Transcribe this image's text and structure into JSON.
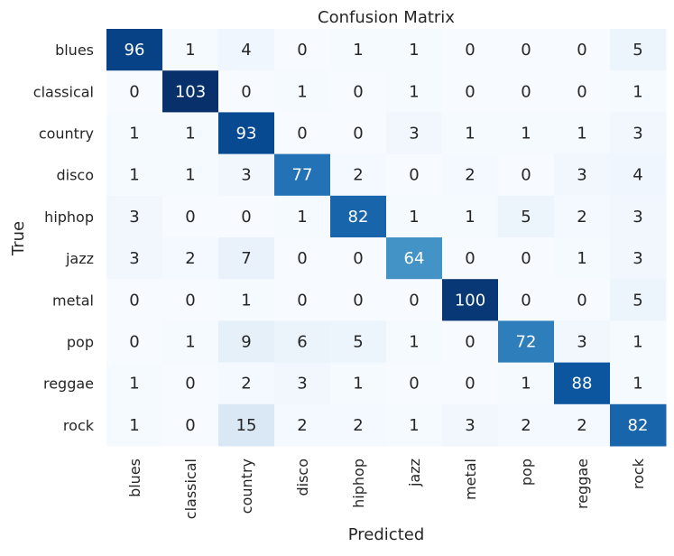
{
  "chart_data": {
    "type": "heatmap",
    "title": "Confusion Matrix",
    "xlabel": "Predicted",
    "ylabel": "True",
    "x_categories": [
      "blues",
      "classical",
      "country",
      "disco",
      "hiphop",
      "jazz",
      "metal",
      "pop",
      "reggae",
      "rock"
    ],
    "y_categories": [
      "blues",
      "classical",
      "country",
      "disco",
      "hiphop",
      "jazz",
      "metal",
      "pop",
      "reggae",
      "rock"
    ],
    "values": [
      [
        96,
        1,
        4,
        0,
        1,
        1,
        0,
        0,
        0,
        5
      ],
      [
        0,
        103,
        0,
        1,
        0,
        1,
        0,
        0,
        0,
        1
      ],
      [
        1,
        1,
        93,
        0,
        0,
        3,
        1,
        1,
        1,
        3
      ],
      [
        1,
        1,
        3,
        77,
        2,
        0,
        2,
        0,
        3,
        4
      ],
      [
        3,
        0,
        0,
        1,
        82,
        1,
        1,
        5,
        2,
        3
      ],
      [
        3,
        2,
        7,
        0,
        0,
        64,
        0,
        0,
        1,
        3
      ],
      [
        0,
        0,
        1,
        0,
        0,
        0,
        100,
        0,
        0,
        5
      ],
      [
        0,
        1,
        9,
        6,
        5,
        1,
        0,
        72,
        3,
        1
      ],
      [
        1,
        0,
        2,
        3,
        1,
        0,
        0,
        1,
        88,
        1
      ],
      [
        1,
        0,
        15,
        2,
        2,
        1,
        3,
        2,
        2,
        82
      ]
    ],
    "colormap": "Blues",
    "value_range": [
      0,
      103
    ],
    "colorbar": false,
    "grid": false
  }
}
